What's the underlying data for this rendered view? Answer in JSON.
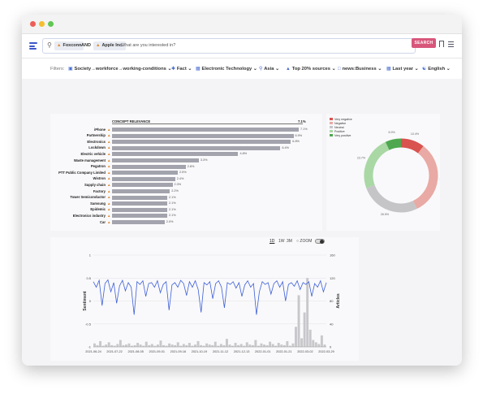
{
  "window": {
    "dots": [
      {
        "name": "close-dot",
        "color": "#ec5f57"
      },
      {
        "name": "minimize-dot",
        "color": "#f4be2f"
      },
      {
        "name": "zoom-dot",
        "color": "#61c654"
      }
    ]
  },
  "search": {
    "chip1": "Foxconn",
    "operator": "AND",
    "chip2": "Apple Inc.",
    "placeholder": "What are you interested in?",
    "button": "SEARCH"
  },
  "filters": {
    "label": "Filters:",
    "items": [
      "Society→workforce→working-conditions",
      "Fact",
      "Electronic Technology",
      "Asia",
      "Top 20% sources",
      "news:Business",
      "Last year",
      "English"
    ]
  },
  "relevance": {
    "header": "CONCEPT RELEVANCE",
    "max_label": "7.1%",
    "colors": {
      "bar": "#a3a3ad",
      "flame": "#e08a2e"
    }
  },
  "sentiment_legend": [
    "Very negative",
    "Negative",
    "Neutral",
    "Positive",
    "Very positive"
  ],
  "timeline": {
    "ranges": [
      "1D",
      "1W",
      "3M"
    ],
    "zoom_label": "ZOOM"
  },
  "chart_data": [
    {
      "type": "bar",
      "title": "CONCEPT RELEVANCE",
      "categories": [
        "iPhone",
        "Partnership",
        "Electronics",
        "Lockdown",
        "Electric vehicle",
        "Waste management",
        "Pegatron",
        "PTT Public Company Limited",
        "Wistron",
        "Supply chain",
        "Factory",
        "Tower Semiconductor",
        "Samsung",
        "Epidemic",
        "Electronics industry",
        "Car"
      ],
      "values": [
        7.1,
        6.9,
        6.8,
        6.4,
        4.8,
        3.3,
        2.8,
        2.5,
        2.4,
        2.3,
        2.2,
        2.1,
        2.1,
        2.1,
        2.1,
        2.0
      ],
      "value_labels": [
        "7.1%",
        "6.9%",
        "6.8%",
        "6.4%",
        "4.8%",
        "3.3%",
        "2.8%",
        "2.5%",
        "2.4%",
        "2.3%",
        "2.2%",
        "2.1%",
        "2.1%",
        "2.1%",
        "2.1%",
        "2.0%"
      ]
    },
    {
      "type": "pie",
      "categories": [
        "Very negative",
        "Negative",
        "Neutral",
        "Positive",
        "Very positive"
      ],
      "values": [
        10.4,
        32.5,
        26.5,
        23.7,
        6.9
      ],
      "value_labels": [
        "10.4%",
        "32.5%",
        "26.5%",
        "23.7%",
        "6.9%"
      ],
      "colors": [
        "#d9534f",
        "#e9a9a4",
        "#c5c5c8",
        "#a9d8a4",
        "#4fa84f"
      ]
    },
    {
      "type": "line",
      "ylabel": "Sentiment",
      "y2label": "Articles",
      "ylim": [
        -1,
        1
      ],
      "y_ticks": [
        "1",
        "0.5",
        "0",
        "-0.5",
        "-1"
      ],
      "y2lim": [
        0,
        160
      ],
      "y2_ticks": [
        "160",
        "120",
        "80",
        "40",
        "0"
      ],
      "x_ticks": [
        "2021-06-24",
        "2021-07-22",
        "2021-08-05",
        "2021-09-01",
        "2021-09-16",
        "2021-10-19",
        "2021-11-12",
        "2021-12-13",
        "2022-01-01",
        "2022-01-21",
        "2022-03-02",
        "2022-03-29"
      ],
      "series": [
        {
          "name": "Sentiment",
          "color": "#3d5fd6",
          "values": [
            0.42,
            0.3,
            0.45,
            -0.1,
            0.38,
            0.46,
            0.2,
            0.4,
            -0.05,
            0.33,
            0.45,
            0.22,
            0.4,
            0.3,
            -0.3,
            0.42,
            0.36,
            0.44,
            0.1,
            0.38,
            0.4,
            0.3,
            0.44,
            0.18,
            0.36,
            0.42,
            -0.2,
            0.35,
            0.4,
            0.3,
            0.45,
            0.38,
            0.12,
            0.42,
            0.3,
            0.44,
            0.25,
            -0.25,
            0.4,
            0.35,
            0.42,
            0.05,
            0.38,
            0.44,
            0.3,
            -0.15,
            0.4,
            0.36,
            0.42,
            0.28,
            0.4,
            0.1,
            0.35,
            0.44,
            0.3,
            0.38,
            -0.3,
            0.2,
            0.42,
            0.36,
            0.4,
            0.15,
            0.38,
            0.44,
            0.3,
            0.42,
            0.0,
            0.36,
            0.4,
            0.32,
            0.44,
            0.25,
            0.4,
            0.36,
            0.42,
            0.1,
            0.38,
            0.3,
            0.44,
            0.2,
            0.4
          ]
        },
        {
          "name": "Articles",
          "color": "#c8c8cc",
          "values": [
            6,
            3,
            10,
            2,
            4,
            8,
            3,
            2,
            5,
            12,
            3,
            4,
            6,
            2,
            3,
            7,
            4,
            2,
            9,
            3,
            5,
            2,
            4,
            11,
            3,
            2,
            6,
            4,
            3,
            8,
            2,
            5,
            3,
            7,
            2,
            4,
            10,
            3,
            2,
            6,
            4,
            3,
            9,
            2,
            5,
            3,
            14,
            4,
            2,
            7,
            3,
            5,
            2,
            8,
            4,
            3,
            12,
            2,
            6,
            4,
            3,
            9,
            5,
            2,
            7,
            4,
            3,
            10,
            2,
            6,
            35,
            90,
            15,
            60,
            120,
            30,
            12,
            8,
            5,
            20,
            4
          ]
        }
      ]
    }
  ]
}
